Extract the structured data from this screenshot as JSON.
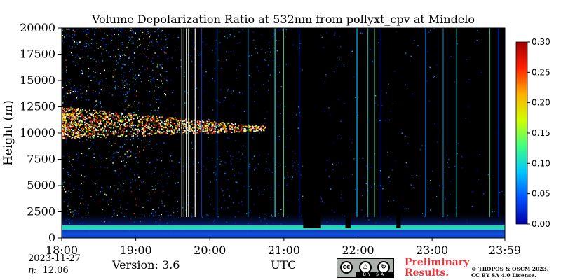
{
  "chart_data": {
    "type": "heatmap",
    "title": "Volume Depolarization Ratio at 532nm from pollyxt_cpv at Mindelo",
    "ylabel": "Height (m)",
    "xlabel": "UTC",
    "x_ticks": [
      "18:00",
      "19:00",
      "20:00",
      "21:00",
      "22:00",
      "23:00",
      "23:59"
    ],
    "x_range": [
      "18:00",
      "23:59"
    ],
    "y_ticks": [
      0,
      2500,
      5000,
      7500,
      10000,
      12500,
      15000,
      17500,
      20000
    ],
    "ylim": [
      0,
      20000
    ],
    "colorbar": {
      "ticks": [
        "0.00",
        "0.05",
        "0.10",
        "0.15",
        "0.20",
        "0.25",
        "0.30"
      ],
      "range": [
        0,
        0.3
      ],
      "colors": [
        "#0000a8",
        "#0050ff",
        "#00c8ff",
        "#40ff80",
        "#d0ff00",
        "#ffb000",
        "#ff2000",
        "#a00000"
      ]
    },
    "no_data_color": "#000000",
    "features": [
      {
        "name": "boundary layer",
        "height_top": 1500,
        "value": 0.05
      },
      {
        "name": "cloud layer",
        "time_start": "18:00",
        "time_end": "20:45",
        "height_bottom": 9500,
        "height_top": 12500,
        "value": 0.25
      }
    ],
    "date": "2023-11-27",
    "eta_label": "η:",
    "eta_value": "12.06",
    "version": "Version: 3.6"
  },
  "footer": {
    "preliminary": "Preliminary Results.",
    "copyright_line1": "© TROPOS & OSCM 2023.",
    "copyright_line2": "CC BY SA 4.0 License.",
    "license_badge": {
      "cc": "cc",
      "by": "BY",
      "sa": "SA"
    }
  }
}
